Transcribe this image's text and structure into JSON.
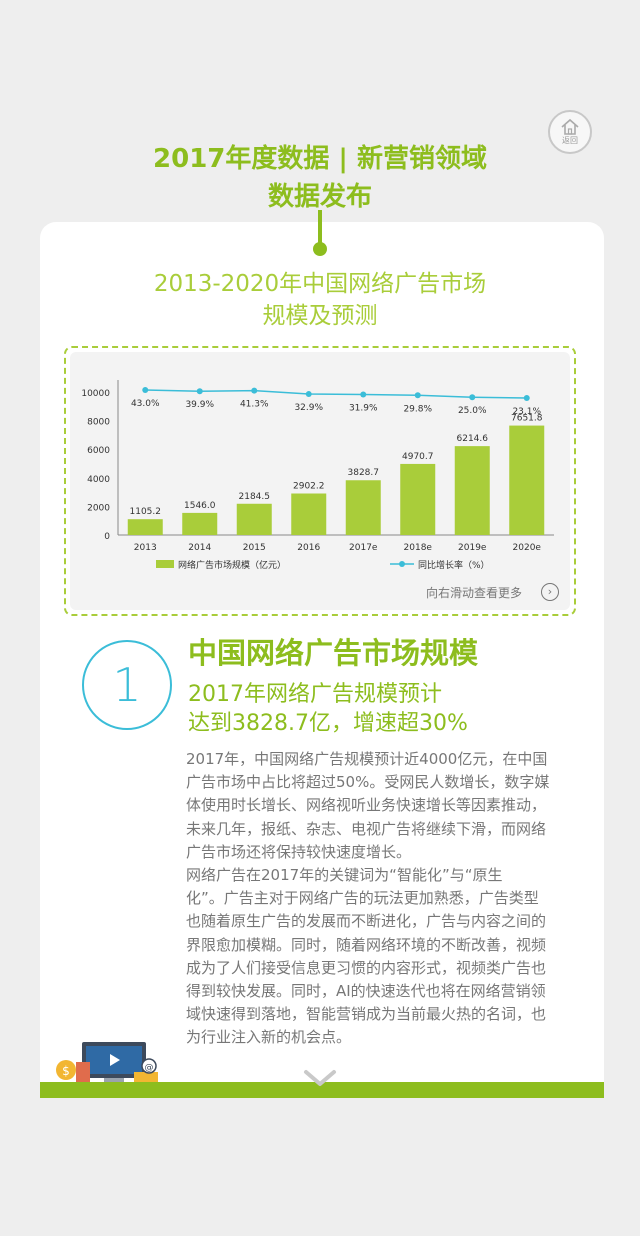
{
  "header": {
    "line1": "2017年度数据 | 新营销领域",
    "line2": "数据发布",
    "home_label": "返回"
  },
  "chart_title": {
    "line1": "2013-2020年中国网络广告市场",
    "line2": "规模及预测"
  },
  "chart_data": {
    "type": "bar",
    "categories": [
      "2013",
      "2014",
      "2015",
      "2016",
      "2017e",
      "2018e",
      "2019e",
      "2020e"
    ],
    "series": [
      {
        "name": "网络广告市场规模（亿元）",
        "type": "bar",
        "values": [
          1105.2,
          1546.0,
          2184.5,
          2902.2,
          3828.7,
          4970.7,
          6214.6,
          7651.8
        ],
        "labels": [
          "1105.2",
          "1546.0",
          "2184.5",
          "2902.2",
          "3828.7",
          "4970.7",
          "6214.6",
          "7651.8"
        ]
      },
      {
        "name": "同比增长率（%）",
        "type": "line",
        "values": [
          43.0,
          39.9,
          41.3,
          32.9,
          31.9,
          29.8,
          25.0,
          23.1
        ],
        "labels": [
          "43.0%",
          "39.9%",
          "41.3%",
          "32.9%",
          "31.9%",
          "29.8%",
          "25.0%",
          "23.1%"
        ]
      }
    ],
    "yticks": [
      "0",
      "2000",
      "4000",
      "6000",
      "8000",
      "10000"
    ],
    "ylim": [
      0,
      10000
    ],
    "bar_color": "#a9cd3a",
    "line_color": "#3bbdd8",
    "legend_position": "bottom"
  },
  "scroll_hint": "向右滑动查看更多",
  "section": {
    "number": "1",
    "title": "中国网络广告市场规模",
    "subtitle_line1": "2017年网络广告规模预计",
    "subtitle_line2": "达到3828.7亿，增速超30%",
    "para1": [
      "2017年，中国网络广告规模预计近4000亿元，在中国",
      "广告市场中占比将超过50%。受网民人数增长，数字媒",
      "体使用时长增长、网络视听业务快速增长等因素推动，",
      "未来几年，报纸、杂志、电视广告将继续下滑，而网络",
      "广告市场还将保持较快速度增长。"
    ],
    "para2": [
      "网络广告在2017年的关键词为“智能化”与“原生",
      "化”。广告主对于网络广告的玩法更加熟悉，广告类型",
      "也随着原生广告的发展而不断进化，广告与内容之间的",
      "界限愈加模糊。同时，随着网络环境的不断改善，视频",
      "成为了人们接受信息更习惯的内容形式，视频类广告也",
      "得到较快发展。同时，AI的快速迭代也将在网络营销领",
      "域快速得到落地，智能营销成为当前最火热的名词，也",
      "为行业注入新的机会点。"
    ]
  },
  "colors": {
    "accent": "#8dbd1e",
    "cyan": "#3bbdd8"
  }
}
